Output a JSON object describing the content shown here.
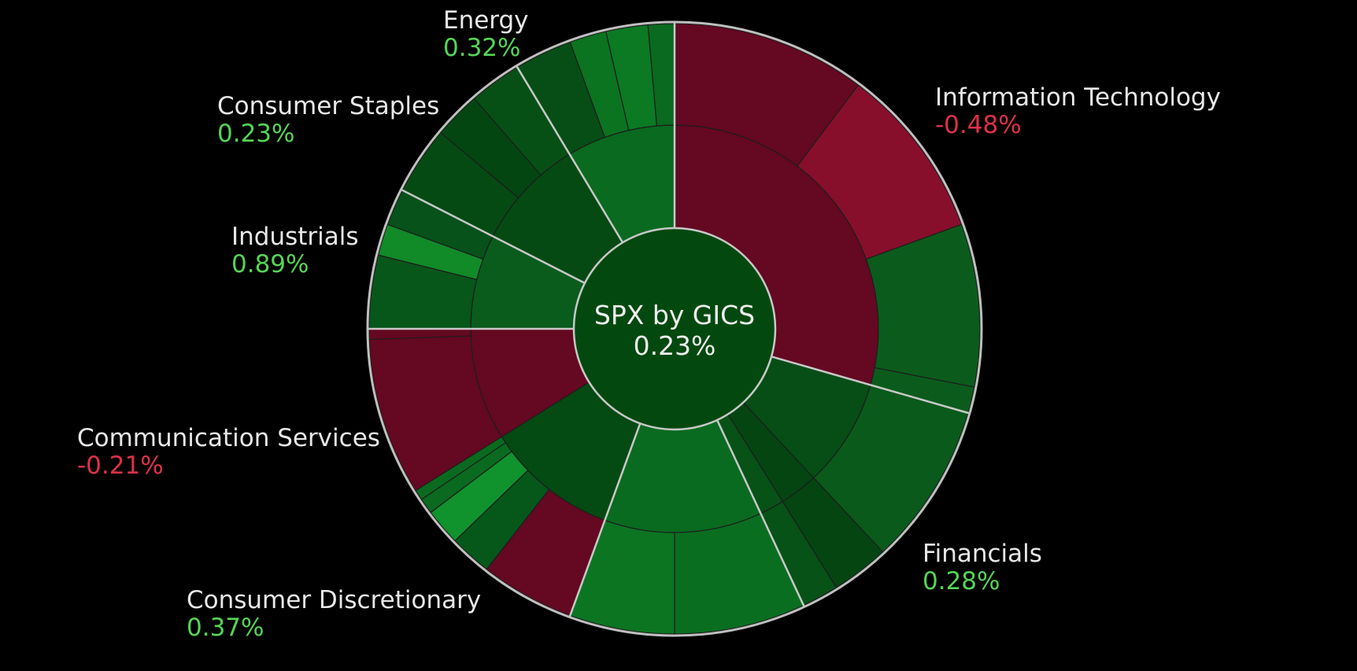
{
  "chart_data": {
    "type": "sunburst",
    "title": "SPX by GICS",
    "total_change": "0.23%",
    "colors": {
      "background": "#000000",
      "center": "#03490f",
      "text": "#e8e8e8",
      "positive_text": "#55d655",
      "negative_text": "#e0304a",
      "outer_ring": "#bfbfbf"
    },
    "sectors": [
      {
        "name": "Information Technology",
        "change": "-0.48%",
        "sign": "negative",
        "a0": 0,
        "a1": 106,
        "color": "#650822",
        "children": [
          {
            "a0": 0,
            "a1": 106,
            "color": "#650822",
            "leaves": [
              {
                "a0": 0,
                "a1": 37,
                "color": "#650822"
              },
              {
                "a0": 37,
                "a1": 70,
                "color": "#870f2c"
              },
              {
                "a0": 70,
                "a1": 101,
                "color": "#0b5c1c"
              },
              {
                "a0": 101,
                "a1": 106,
                "color": "#0b5c1c"
              }
            ]
          }
        ]
      },
      {
        "name": "Financials",
        "change": "0.28%",
        "sign": "positive",
        "a0": 106,
        "a1": 155,
        "color": "#064e15",
        "children": [
          {
            "a0": 106,
            "a1": 137,
            "color": "#064e15",
            "leaves": [
              {
                "a0": 106,
                "a1": 137,
                "color": "#0a5a1b"
              }
            ]
          },
          {
            "a0": 137,
            "a1": 148,
            "color": "#044512",
            "leaves": [
              {
                "a0": 137,
                "a1": 148,
                "color": "#044512"
              }
            ]
          },
          {
            "a0": 148,
            "a1": 155,
            "color": "#075217",
            "leaves": [
              {
                "a0": 148,
                "a1": 155,
                "color": "#075217"
              }
            ]
          }
        ]
      },
      {
        "name": "Consumer Discretionary",
        "change": "0.37%",
        "sign": "positive",
        "a0": 155,
        "a1": 200,
        "color": "#096b1f",
        "children": [
          {
            "a0": 155,
            "a1": 200,
            "color": "#096b1f",
            "leaves": [
              {
                "a0": 155,
                "a1": 180,
                "color": "#0a6e20"
              },
              {
                "a0": 180,
                "a1": 200,
                "color": "#0b7522"
              }
            ]
          }
        ]
      },
      {
        "name": "Communication Services",
        "change": "-0.21%",
        "sign": "negative",
        "a0": 200,
        "a1": 270,
        "color": "#044a13",
        "children": [
          {
            "a0": 200,
            "a1": 238,
            "color": "#044a13",
            "leaves": [
              {
                "a0": 200,
                "a1": 218,
                "color": "#650822"
              },
              {
                "a0": 218,
                "a1": 226,
                "color": "#05581a"
              },
              {
                "a0": 226,
                "a1": 233,
                "color": "#10922c"
              },
              {
                "a0": 233,
                "a1": 236,
                "color": "#0a6a1f"
              },
              {
                "a0": 236,
                "a1": 238,
                "color": "#0a6a1f"
              }
            ]
          },
          {
            "a0": 238,
            "a1": 270,
            "color": "#650822",
            "leaves": [
              {
                "a0": 238,
                "a1": 268,
                "color": "#650822"
              },
              {
                "a0": 268,
                "a1": 270,
                "color": "#650822"
              }
            ]
          }
        ]
      },
      {
        "name": "Industrials",
        "change": "0.89%",
        "sign": "positive",
        "a0": 270,
        "a1": 297,
        "color": "#0a5c1c",
        "children": [
          {
            "a0": 270,
            "a1": 297,
            "color": "#0a5c1c",
            "leaves": [
              {
                "a0": 270,
                "a1": 284,
                "color": "#07561a"
              },
              {
                "a0": 284,
                "a1": 290,
                "color": "#118a28"
              },
              {
                "a0": 290,
                "a1": 297,
                "color": "#06521a"
              }
            ]
          }
        ]
      },
      {
        "name": "Consumer Staples",
        "change": "0.23%",
        "sign": "positive",
        "a0": 297,
        "a1": 329,
        "color": "#054a13",
        "children": [
          {
            "a0": 297,
            "a1": 329,
            "color": "#054a13",
            "leaves": [
              {
                "a0": 297,
                "a1": 310,
                "color": "#054a13"
              },
              {
                "a0": 310,
                "a1": 319,
                "color": "#044612"
              },
              {
                "a0": 319,
                "a1": 329,
                "color": "#065016"
              }
            ]
          }
        ]
      },
      {
        "name": "Energy",
        "change": "0.32%",
        "sign": "positive",
        "a0": 329,
        "a1": 360,
        "color": "#0a6a1f",
        "children": [
          {
            "a0": 329,
            "a1": 360,
            "color": "#0a6a1f",
            "leaves": [
              {
                "a0": 329,
                "a1": 340,
                "color": "#064e16"
              },
              {
                "a0": 340,
                "a1": 347,
                "color": "#0a7421"
              },
              {
                "a0": 347,
                "a1": 355,
                "color": "#0b7a23"
              },
              {
                "a0": 355,
                "a1": 360,
                "color": "#0a6a1f"
              }
            ]
          }
        ]
      }
    ]
  }
}
